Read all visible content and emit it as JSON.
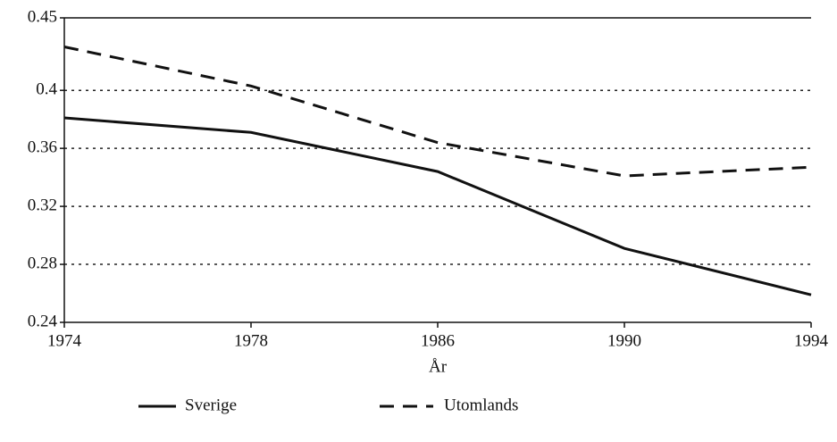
{
  "chart_data": {
    "type": "line",
    "x_label": "År",
    "categories": [
      "1974",
      "1978",
      "1986",
      "1990",
      "1994"
    ],
    "series": [
      {
        "name": "Sverige",
        "color": "#111111",
        "linestyle": "solid",
        "values": [
          0.381,
          0.371,
          0.344,
          0.291,
          0.259
        ]
      },
      {
        "name": "Utomlands",
        "color": "#111111",
        "linestyle": "dashed",
        "values": [
          0.43,
          0.403,
          0.364,
          0.341,
          0.347
        ]
      }
    ],
    "ylim": [
      0.24,
      0.45
    ],
    "yticks": [
      0.24,
      0.28,
      0.32,
      0.36,
      0.4,
      0.45
    ],
    "grid": true,
    "legend": "bottom"
  }
}
